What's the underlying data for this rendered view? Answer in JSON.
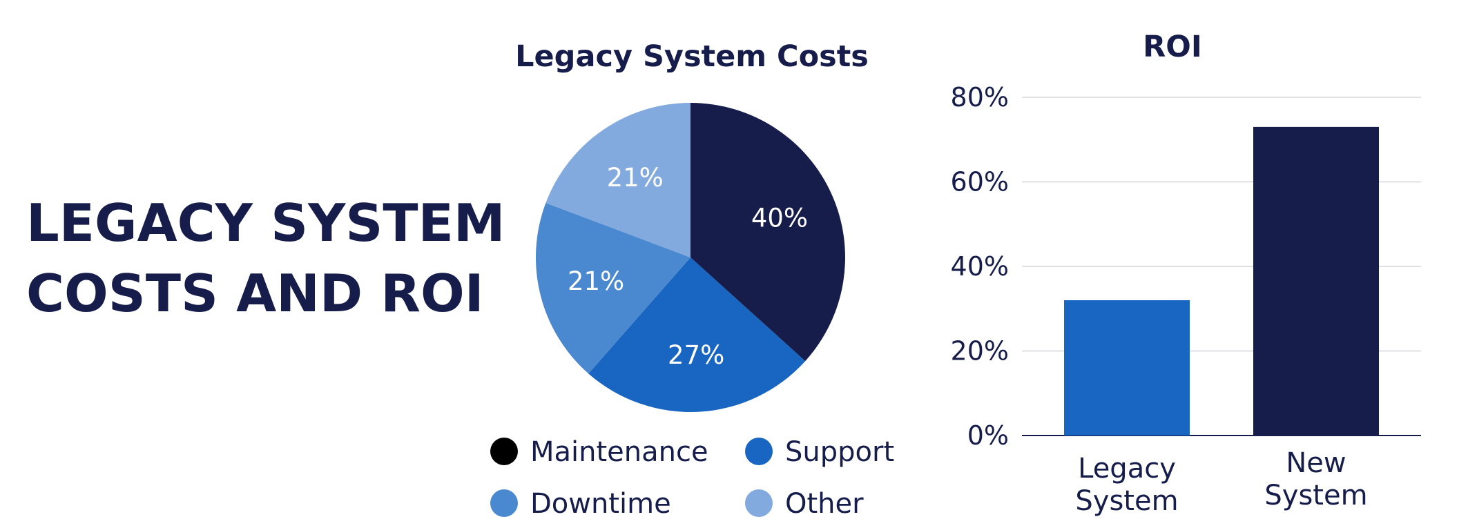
{
  "page": {
    "title_lines": [
      "LEGACY SYSTEM",
      "COSTS AND ROI"
    ]
  },
  "colors": {
    "navy": "#171d4b",
    "blue": "#1966c2",
    "mid_blue": "#4a88d0",
    "light_blue": "#82aade",
    "gridline": "#d6d6dc",
    "legend_maintenance": "#000000"
  },
  "chart_data": [
    {
      "type": "pie",
      "title": "Legacy System Costs",
      "slices": [
        {
          "label": "Maintenance",
          "value": 40,
          "display": "40%",
          "color": "#171d4b",
          "legend_color": "#000000"
        },
        {
          "label": "Support",
          "value": 27,
          "display": "27%",
          "color": "#1966c2",
          "legend_color": "#1966c2"
        },
        {
          "label": "Downtime",
          "value": 21,
          "display": "21%",
          "color": "#4a88d0",
          "legend_color": "#4a88d0"
        },
        {
          "label": "Other",
          "value": 21,
          "display": "21%",
          "color": "#82aade",
          "legend_color": "#82aade"
        }
      ],
      "legend_position": "bottom"
    },
    {
      "type": "bar",
      "title": "ROI",
      "categories": [
        [
          "Legacy",
          "System"
        ],
        [
          "New",
          "System"
        ]
      ],
      "values": [
        32,
        73
      ],
      "colors": [
        "#1966c2",
        "#171d4b"
      ],
      "ylim": [
        0,
        80
      ],
      "yticks": [
        "0%",
        "20%",
        "40%",
        "60%",
        "80%"
      ],
      "ytick_values": [
        0,
        20,
        40,
        60,
        80
      ],
      "grid": true
    }
  ]
}
